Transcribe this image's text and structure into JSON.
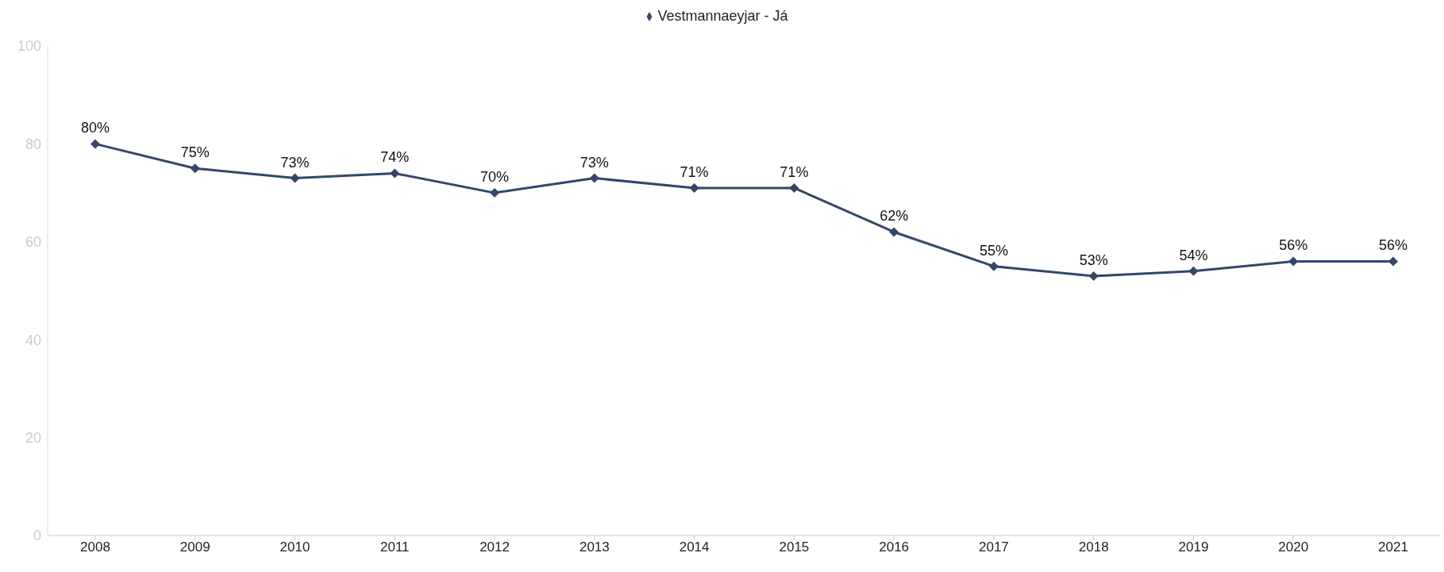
{
  "chart_data": {
    "type": "line",
    "categories": [
      "2008",
      "2009",
      "2010",
      "2011",
      "2012",
      "2013",
      "2014",
      "2015",
      "2016",
      "2017",
      "2018",
      "2019",
      "2020",
      "2021"
    ],
    "series": [
      {
        "name": "Vestmannaeyjar - Já",
        "color": "#34466a",
        "values": [
          80,
          75,
          73,
          74,
          70,
          73,
          71,
          71,
          62,
          55,
          53,
          54,
          56,
          56
        ],
        "value_labels": [
          "80%",
          "75%",
          "73%",
          "74%",
          "70%",
          "73%",
          "71%",
          "71%",
          "62%",
          "55%",
          "53%",
          "54%",
          "56%",
          "56%"
        ]
      }
    ],
    "ylim": [
      0,
      100
    ],
    "yticks": [
      0,
      20,
      40,
      60,
      80,
      100
    ],
    "grid": false,
    "legend": "top",
    "marker": "diamond",
    "line_style": "solid"
  }
}
